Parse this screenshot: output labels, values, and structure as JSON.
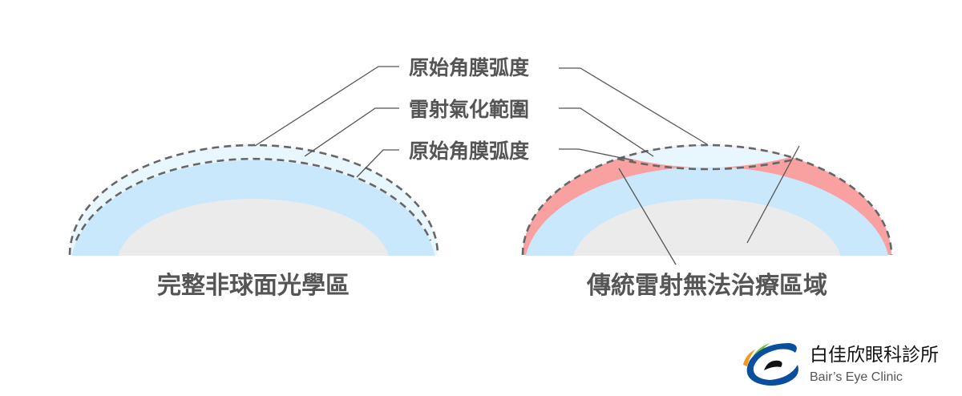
{
  "labels": {
    "original_curvature_top": "原始角膜弧度",
    "laser_ablation_area": "雷射氣化範圍",
    "original_curvature_bottom": "原始角膜弧度"
  },
  "left_caption": "完整非球面光學區",
  "right_caption": "傳統雷射無法治療區域",
  "logo": {
    "name_zh": "白佳欣眼科診所",
    "name_en": "Bair’s Eye Clinic"
  },
  "colors": {
    "cornea_blue": "#c9e8fc",
    "ablation_light": "#e8f6fe",
    "untreated_red": "#f9a0a0",
    "inner_gray": "#ebebeb",
    "text": "#555555",
    "logo_blue": "#0a4f9e",
    "logo_green": "#7cc242",
    "logo_orange": "#f39a1e"
  }
}
